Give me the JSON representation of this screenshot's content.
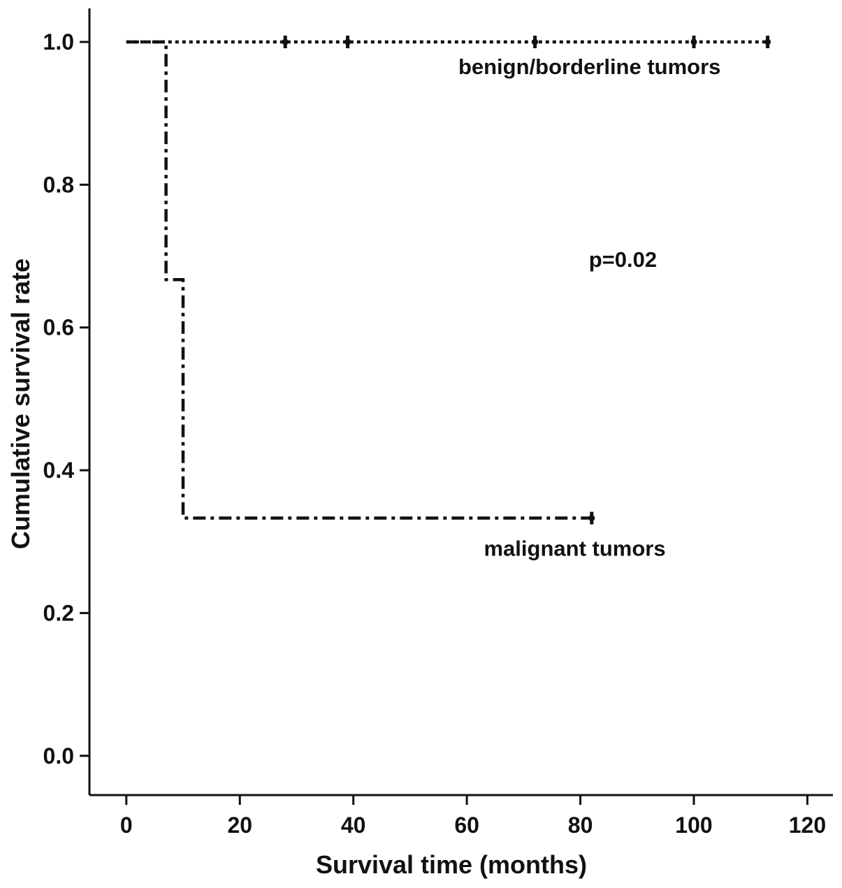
{
  "chart_data": {
    "type": "line",
    "subtype": "kaplan-meier",
    "title": "",
    "xlabel": "Survival time (months)",
    "ylabel": "Cumulative survival rate",
    "xlim": [
      -6.5,
      124.5
    ],
    "ylim": [
      -0.055,
      1.047
    ],
    "x_ticks": [
      0,
      20,
      40,
      60,
      80,
      100,
      120
    ],
    "y_ticks": [
      0.0,
      0.2,
      0.4,
      0.6,
      0.8,
      1.0
    ],
    "x_tick_labels": [
      "0",
      "20",
      "40",
      "60",
      "80",
      "100",
      "120"
    ],
    "y_tick_labels": [
      "0.0",
      "0.2",
      "0.4",
      "0.6",
      "0.8",
      "1.0"
    ],
    "grid": false,
    "colors": {
      "line": "#111111",
      "axis": "#111111"
    },
    "series": [
      {
        "line_style": "dotted",
        "steps": [
          [
            0,
            1.0
          ],
          [
            113,
            1.0
          ]
        ],
        "censored": [
          28,
          39,
          72,
          100,
          113
        ],
        "label_position": "below-right end of curve"
      },
      {
        "line_style": "dash-dot",
        "steps": [
          [
            0,
            1.0
          ],
          [
            7,
            1.0
          ],
          [
            7,
            0.667
          ],
          [
            10,
            0.667
          ],
          [
            10,
            0.333
          ],
          [
            82,
            0.333
          ]
        ],
        "censored": [
          82
        ],
        "label_position": "below-right end of curve"
      }
    ],
    "annotations": [
      {
        "text": "benign/borderline tumors",
        "x": 58.5,
        "y": 0.955
      },
      {
        "text": "malignant tumors",
        "x": 63,
        "y": 0.28
      },
      {
        "text": "p=0.02",
        "x": 81.5,
        "y": 0.685
      }
    ]
  }
}
